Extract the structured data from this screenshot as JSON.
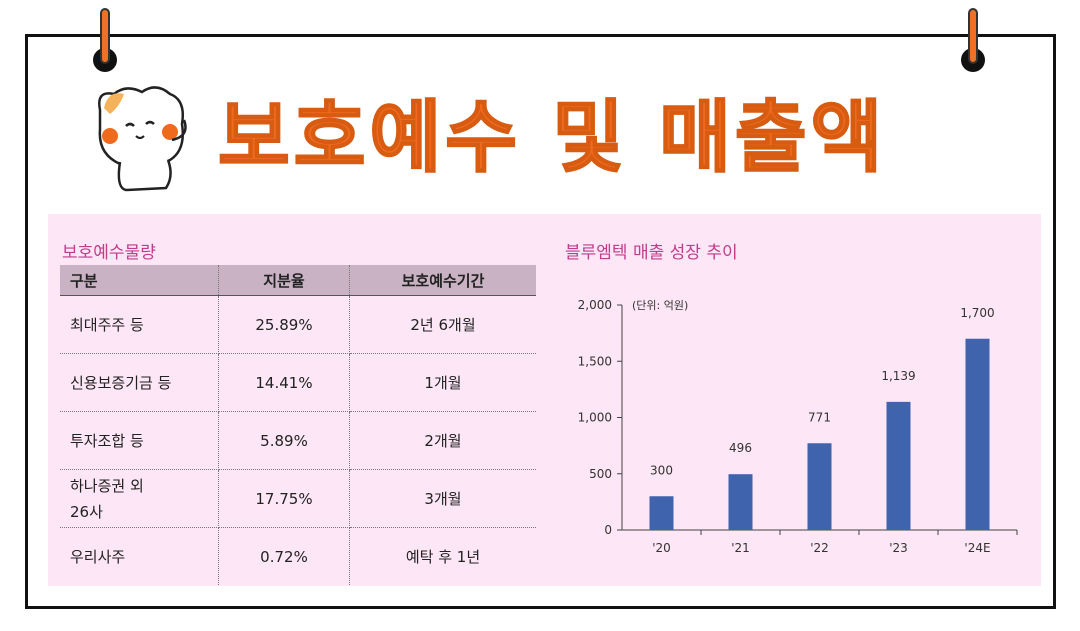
{
  "page_title": "보호예수 및 매출액",
  "lockup": {
    "heading": "보호예수물량",
    "columns": [
      "구분",
      "지분율",
      "보호예수기간"
    ],
    "rows": [
      {
        "category": "최대주주 등",
        "share": "25.89%",
        "period": "2년 6개월"
      },
      {
        "category": "신용보증기금 등",
        "share": "14.41%",
        "period": "1개월"
      },
      {
        "category": "투자조합 등",
        "share": "5.89%",
        "period": "2개월"
      },
      {
        "category": "하나증권 외\n26사",
        "share": "17.75%",
        "period": "3개월"
      },
      {
        "category": "우리사주",
        "share": "0.72%",
        "period": "예탁 후 1년"
      }
    ]
  },
  "colors": {
    "accent": "#f06a1e",
    "panel": "#fde6f5",
    "bar": "#3f63ad",
    "heading": "#c03c8c",
    "header_row": "#c9b2c3"
  },
  "chart_data": {
    "type": "bar",
    "title": "블루엠텍 매출 성장 추이",
    "unit_label": "(단위: 억원)",
    "categories": [
      "'20",
      "'21",
      "'22",
      "'23",
      "'24E"
    ],
    "values": [
      300,
      496,
      771,
      1139,
      1700
    ],
    "value_labels": [
      "300",
      "496",
      "771",
      "1,139",
      "1,700"
    ],
    "ylim": [
      0,
      2000
    ],
    "yticks": [
      0,
      500,
      1000,
      1500,
      2000
    ],
    "ytick_labels": [
      "0",
      "500",
      "1,000",
      "1,500",
      "2,000"
    ],
    "grid": false,
    "xlabel": "",
    "ylabel": ""
  }
}
